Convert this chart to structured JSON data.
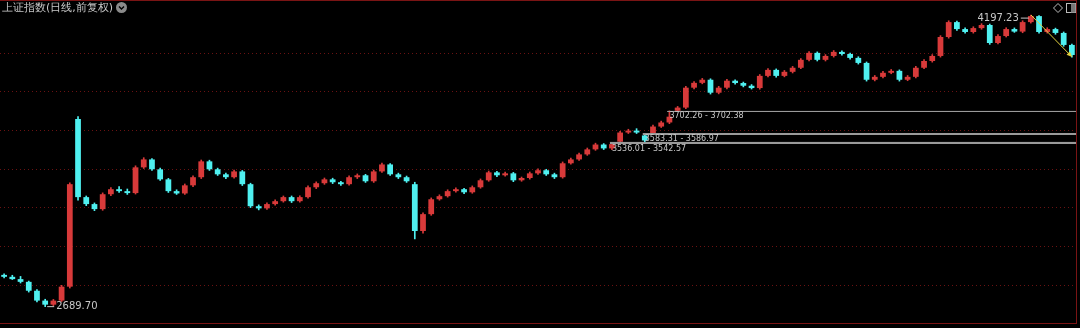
{
  "chart_data": {
    "type": "candlestick",
    "title": "上证指数(日线,前复权)",
    "categories": [
      null,
      null,
      null,
      null,
      null,
      null,
      null,
      null,
      null,
      null,
      null,
      null,
      null,
      null,
      null,
      null,
      null,
      null,
      null,
      null,
      null,
      null,
      null,
      null,
      null,
      null,
      null,
      null,
      null,
      null,
      null,
      null,
      null,
      null,
      null,
      null,
      null,
      null,
      null,
      null,
      null,
      null,
      null,
      null,
      null,
      null,
      null,
      null,
      null,
      null,
      null,
      null,
      null,
      null,
      null,
      null,
      null,
      null,
      null,
      null,
      null,
      null,
      null,
      null,
      null,
      null,
      null,
      null,
      null,
      null,
      null,
      null,
      null,
      null,
      null,
      null,
      null,
      null,
      null,
      null,
      null,
      null,
      null,
      null,
      null,
      null,
      null,
      null,
      null,
      null,
      null,
      null,
      null,
      null,
      null,
      null,
      null,
      null,
      null,
      null,
      null,
      null,
      null,
      null,
      null,
      null,
      null,
      null,
      null,
      null,
      null,
      null,
      null,
      null,
      null,
      null,
      null,
      null,
      null,
      null,
      null,
      null,
      null,
      null,
      null,
      null,
      null,
      null,
      null,
      null,
      null
    ],
    "ohlc": [
      [
        2854,
        2860,
        2838,
        2844
      ],
      [
        2844,
        2852,
        2830,
        2832
      ],
      [
        2832,
        2846,
        2812,
        2818
      ],
      [
        2818,
        2822,
        2765,
        2772
      ],
      [
        2772,
        2778,
        2714,
        2721
      ],
      [
        2721,
        2728,
        2689.7,
        2700
      ],
      [
        2700,
        2727,
        2695,
        2721
      ],
      [
        2721,
        2800,
        2716,
        2793
      ],
      [
        2793,
        3330,
        2786,
        3323
      ],
      [
        3660,
        3672,
        3240,
        3256
      ],
      [
        3256,
        3262,
        3212,
        3220
      ],
      [
        3220,
        3226,
        3186,
        3194
      ],
      [
        3194,
        3278,
        3188,
        3271
      ],
      [
        3271,
        3305,
        3264,
        3297
      ],
      [
        3297,
        3310,
        3280,
        3287
      ],
      [
        3287,
        3298,
        3270,
        3277
      ],
      [
        3277,
        3418,
        3272,
        3410
      ],
      [
        3410,
        3460,
        3404,
        3451
      ],
      [
        3451,
        3456,
        3394,
        3400
      ],
      [
        3400,
        3406,
        3342,
        3348
      ],
      [
        3348,
        3353,
        3280,
        3287
      ],
      [
        3287,
        3294,
        3270,
        3275
      ],
      [
        3275,
        3324,
        3270,
        3317
      ],
      [
        3317,
        3366,
        3310,
        3359
      ],
      [
        3359,
        3448,
        3352,
        3441
      ],
      [
        3441,
        3447,
        3394,
        3400
      ],
      [
        3400,
        3406,
        3368,
        3374
      ],
      [
        3374,
        3380,
        3352,
        3359
      ],
      [
        3359,
        3396,
        3354,
        3389
      ],
      [
        3389,
        3394,
        3316,
        3323
      ],
      [
        3323,
        3328,
        3202,
        3209
      ],
      [
        3209,
        3216,
        3190,
        3198
      ],
      [
        3198,
        3227,
        3192,
        3220
      ],
      [
        3220,
        3242,
        3214,
        3235
      ],
      [
        3235,
        3262,
        3230,
        3256
      ],
      [
        3256,
        3262,
        3228,
        3235
      ],
      [
        3235,
        3263,
        3230,
        3256
      ],
      [
        3256,
        3314,
        3250,
        3307
      ],
      [
        3307,
        3335,
        3300,
        3328
      ],
      [
        3328,
        3355,
        3322,
        3348
      ],
      [
        3348,
        3354,
        3326,
        3333
      ],
      [
        3333,
        3338,
        3316,
        3323
      ],
      [
        3323,
        3366,
        3318,
        3359
      ],
      [
        3359,
        3376,
        3352,
        3369
      ],
      [
        3369,
        3374,
        3332,
        3338
      ],
      [
        3338,
        3396,
        3332,
        3389
      ],
      [
        3389,
        3432,
        3384,
        3425
      ],
      [
        3425,
        3430,
        3368,
        3374
      ],
      [
        3374,
        3380,
        3352,
        3359
      ],
      [
        3359,
        3365,
        3332,
        3338
      ],
      [
        3323,
        3333,
        3040,
        3081
      ],
      [
        3081,
        3175,
        3070,
        3168
      ],
      [
        3168,
        3252,
        3162,
        3245
      ],
      [
        3245,
        3268,
        3240,
        3261
      ],
      [
        3261,
        3294,
        3256,
        3287
      ],
      [
        3287,
        3304,
        3282,
        3297
      ],
      [
        3297,
        3302,
        3274,
        3281
      ],
      [
        3281,
        3314,
        3276,
        3307
      ],
      [
        3307,
        3350,
        3302,
        3343
      ],
      [
        3343,
        3391,
        3338,
        3384
      ],
      [
        3384,
        3390,
        3362,
        3369
      ],
      [
        3369,
        3386,
        3364,
        3379
      ],
      [
        3379,
        3384,
        3336,
        3343
      ],
      [
        3343,
        3360,
        3338,
        3355
      ],
      [
        3355,
        3386,
        3349,
        3379
      ],
      [
        3379,
        3402,
        3374,
        3395
      ],
      [
        3395,
        3400,
        3368,
        3374
      ],
      [
        3374,
        3380,
        3352,
        3359
      ],
      [
        3359,
        3438,
        3354,
        3431
      ],
      [
        3431,
        3458,
        3426,
        3451
      ],
      [
        3451,
        3484,
        3446,
        3477
      ],
      [
        3477,
        3510,
        3472,
        3503
      ],
      [
        3503,
        3535,
        3498,
        3528
      ],
      [
        3528,
        3533,
        3502,
        3508
      ],
      [
        3508,
        3536.01,
        3502,
        3530
      ],
      [
        3542.57,
        3596,
        3542.57,
        3590
      ],
      [
        3590,
        3607,
        3585,
        3600
      ],
      [
        3600,
        3610,
        3585,
        3590
      ],
      [
        3575,
        3583.31,
        3540,
        3549
      ],
      [
        3586.97,
        3628,
        3586.97,
        3621
      ],
      [
        3621,
        3649,
        3616,
        3642
      ],
      [
        3642,
        3702.26,
        3636,
        3672
      ],
      [
        3702.38,
        3725,
        3702.38,
        3719
      ],
      [
        3719,
        3829,
        3714,
        3822
      ],
      [
        3822,
        3854,
        3816,
        3847
      ],
      [
        3847,
        3870,
        3842,
        3863
      ],
      [
        3863,
        3868,
        3789,
        3796
      ],
      [
        3796,
        3829,
        3790,
        3822
      ],
      [
        3822,
        3865,
        3816,
        3858
      ],
      [
        3858,
        3863,
        3840,
        3846
      ],
      [
        3846,
        3851,
        3826,
        3832
      ],
      [
        3832,
        3838,
        3815,
        3820
      ],
      [
        3820,
        3890,
        3814,
        3883
      ],
      [
        3883,
        3921,
        3878,
        3914
      ],
      [
        3914,
        3919,
        3876,
        3883
      ],
      [
        3883,
        3911,
        3878,
        3904
      ],
      [
        3904,
        3932,
        3898,
        3925
      ],
      [
        3925,
        3973,
        3920,
        3966
      ],
      [
        3966,
        4009,
        3960,
        4002
      ],
      [
        4002,
        4007,
        3960,
        3966
      ],
      [
        3966,
        3993,
        3960,
        3986
      ],
      [
        3986,
        4014,
        3980,
        4007
      ],
      [
        4007,
        4012,
        3990,
        3996
      ],
      [
        3996,
        4001,
        3970,
        3976
      ],
      [
        3976,
        3982,
        3944,
        3950
      ],
      [
        3950,
        3955,
        3856,
        3863
      ],
      [
        3863,
        3885,
        3857,
        3878
      ],
      [
        3878,
        3906,
        3872,
        3899
      ],
      [
        3899,
        3916,
        3894,
        3909
      ],
      [
        3909,
        3914,
        3856,
        3863
      ],
      [
        3863,
        3885,
        3858,
        3878
      ],
      [
        3878,
        3932,
        3872,
        3925
      ],
      [
        3925,
        3967,
        3920,
        3960
      ],
      [
        3960,
        3993,
        3954,
        3986
      ],
      [
        3986,
        4091,
        3980,
        4084
      ],
      [
        4084,
        4168,
        4078,
        4161
      ],
      [
        4161,
        4166,
        4118,
        4125
      ],
      [
        4125,
        4131,
        4104,
        4110
      ],
      [
        4110,
        4137,
        4104,
        4130
      ],
      [
        4130,
        4153,
        4124,
        4146
      ],
      [
        4146,
        4151,
        4046,
        4053
      ],
      [
        4053,
        4096,
        4048,
        4089
      ],
      [
        4089,
        4132,
        4084,
        4125
      ],
      [
        4125,
        4131,
        4108,
        4112
      ],
      [
        4112,
        4168,
        4106,
        4161
      ],
      [
        4161,
        4197.23,
        4156,
        4192
      ],
      [
        4192,
        4195,
        4104,
        4110
      ],
      [
        4110,
        4132,
        4104,
        4125
      ],
      [
        4125,
        4130,
        4098,
        4105
      ],
      [
        4105,
        4110,
        4036,
        4043
      ],
      [
        4043,
        4048,
        3980,
        3991
      ]
    ],
    "colors": [
      "#4ff0f0",
      "#4ff0f0",
      "#4ff0f0",
      "#4ff0f0",
      "#4ff0f0",
      "#4ff0f0",
      "#d83a3a",
      "#d83a3a",
      "#d83a3a",
      "#4ff0f0",
      "#4ff0f0",
      "#4ff0f0",
      "#d83a3a",
      "#d83a3a",
      "#4ff0f0",
      "#4ff0f0",
      "#d83a3a",
      "#d83a3a",
      "#4ff0f0",
      "#4ff0f0",
      "#4ff0f0",
      "#4ff0f0",
      "#d83a3a",
      "#d83a3a",
      "#d83a3a",
      "#4ff0f0",
      "#4ff0f0",
      "#4ff0f0",
      "#d83a3a",
      "#4ff0f0",
      "#4ff0f0",
      "#4ff0f0",
      "#d83a3a",
      "#d83a3a",
      "#d83a3a",
      "#4ff0f0",
      "#d83a3a",
      "#d83a3a",
      "#d83a3a",
      "#d83a3a",
      "#4ff0f0",
      "#4ff0f0",
      "#d83a3a",
      "#d83a3a",
      "#4ff0f0",
      "#d83a3a",
      "#d83a3a",
      "#4ff0f0",
      "#4ff0f0",
      "#4ff0f0",
      "#4ff0f0",
      "#d83a3a",
      "#d83a3a",
      "#d83a3a",
      "#d83a3a",
      "#d83a3a",
      "#4ff0f0",
      "#d83a3a",
      "#d83a3a",
      "#d83a3a",
      "#4ff0f0",
      "#d83a3a",
      "#4ff0f0",
      "#d83a3a",
      "#d83a3a",
      "#d83a3a",
      "#4ff0f0",
      "#4ff0f0",
      "#d83a3a",
      "#d83a3a",
      "#d83a3a",
      "#d83a3a",
      "#d83a3a",
      "#4ff0f0",
      "#d83a3a",
      "#d83a3a",
      "#d83a3a",
      "#4ff0f0",
      "#4ff0f0",
      "#d83a3a",
      "#d83a3a",
      "#d83a3a",
      "#d83a3a",
      "#d83a3a",
      "#d83a3a",
      "#d83a3a",
      "#4ff0f0",
      "#d83a3a",
      "#d83a3a",
      "#4ff0f0",
      "#4ff0f0",
      "#4ff0f0",
      "#d83a3a",
      "#d83a3a",
      "#4ff0f0",
      "#d83a3a",
      "#d83a3a",
      "#d83a3a",
      "#d83a3a",
      "#4ff0f0",
      "#d83a3a",
      "#d83a3a",
      "#4ff0f0",
      "#4ff0f0",
      "#4ff0f0",
      "#4ff0f0",
      "#d83a3a",
      "#d83a3a",
      "#d83a3a",
      "#4ff0f0",
      "#d83a3a",
      "#d83a3a",
      "#d83a3a",
      "#d83a3a",
      "#d83a3a",
      "#d83a3a",
      "#4ff0f0",
      "#4ff0f0",
      "#d83a3a",
      "#d83a3a",
      "#4ff0f0",
      "#d83a3a",
      "#d83a3a",
      "#4ff0f0",
      "#d83a3a",
      "#d83a3a",
      "#4ff0f0",
      "#d83a3a",
      "#4ff0f0",
      "#4ff0f0",
      "#4ff0f0"
    ],
    "ylim": [
      2600,
      4265
    ],
    "yticks": [
      {
        "value": 2800,
        "label": null
      },
      {
        "value": 3000,
        "label": null
      },
      {
        "value": 3200,
        "label": null
      },
      {
        "value": 3400,
        "label": null
      },
      {
        "value": 3600,
        "label": null
      },
      {
        "value": 3800,
        "label": null
      },
      {
        "value": 4000,
        "label": null
      }
    ],
    "grid": "y",
    "tick_labels": false,
    "bands": [
      {
        "axis": "y",
        "from": 3702.26,
        "to": 3702.38,
        "label": "3702.26 - 3702.38",
        "color": "#9a9a9a"
      },
      {
        "axis": "y",
        "from": 3583.31,
        "to": 3586.97,
        "label": "3583.31 - 3586.97",
        "color": "#9a9a9a"
      },
      {
        "axis": "y",
        "from": 3536.01,
        "to": 3542.57,
        "label": "3536.01 - 3542.57",
        "color": "#9a9a9a"
      }
    ],
    "annotations": [
      "2689.70",
      "4197.23"
    ]
  }
}
